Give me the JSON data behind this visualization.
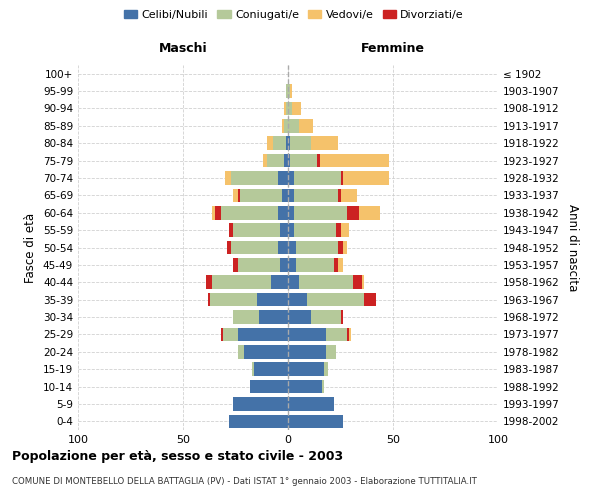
{
  "age_groups": [
    "0-4",
    "5-9",
    "10-14",
    "15-19",
    "20-24",
    "25-29",
    "30-34",
    "35-39",
    "40-44",
    "45-49",
    "50-54",
    "55-59",
    "60-64",
    "65-69",
    "70-74",
    "75-79",
    "80-84",
    "85-89",
    "90-94",
    "95-99",
    "100+"
  ],
  "birth_years": [
    "1998-2002",
    "1993-1997",
    "1988-1992",
    "1983-1987",
    "1978-1982",
    "1973-1977",
    "1968-1972",
    "1963-1967",
    "1958-1962",
    "1953-1957",
    "1948-1952",
    "1943-1947",
    "1938-1942",
    "1933-1937",
    "1928-1932",
    "1923-1927",
    "1918-1922",
    "1913-1917",
    "1908-1912",
    "1903-1907",
    "≤ 1902"
  ],
  "colors": {
    "celibi": "#4472a8",
    "coniugati": "#b5c99a",
    "vedovi": "#f5c26b",
    "divorziati": "#cc2222"
  },
  "maschi": {
    "celibi": [
      28,
      26,
      18,
      16,
      21,
      24,
      14,
      15,
      8,
      4,
      5,
      4,
      5,
      3,
      5,
      2,
      1,
      0,
      0,
      0,
      0
    ],
    "coniugati": [
      0,
      0,
      0,
      1,
      3,
      7,
      12,
      22,
      28,
      20,
      22,
      22,
      27,
      20,
      22,
      8,
      6,
      2,
      1,
      1,
      0
    ],
    "vedovi": [
      0,
      0,
      0,
      0,
      0,
      0,
      0,
      0,
      0,
      0,
      0,
      0,
      1,
      2,
      3,
      2,
      3,
      1,
      1,
      0,
      0
    ],
    "divorziati": [
      0,
      0,
      0,
      0,
      0,
      1,
      0,
      1,
      3,
      2,
      2,
      2,
      3,
      1,
      0,
      0,
      0,
      0,
      0,
      0,
      0
    ]
  },
  "femmine": {
    "celibi": [
      26,
      22,
      16,
      17,
      18,
      18,
      11,
      9,
      5,
      4,
      4,
      3,
      3,
      3,
      3,
      1,
      1,
      0,
      0,
      0,
      0
    ],
    "coniugati": [
      0,
      0,
      1,
      2,
      5,
      10,
      14,
      27,
      26,
      18,
      20,
      20,
      25,
      21,
      22,
      13,
      10,
      5,
      2,
      1,
      0
    ],
    "vedovi": [
      0,
      0,
      0,
      0,
      0,
      1,
      0,
      0,
      1,
      2,
      2,
      4,
      10,
      8,
      22,
      33,
      13,
      7,
      4,
      1,
      0
    ],
    "divorziati": [
      0,
      0,
      0,
      0,
      0,
      1,
      1,
      6,
      4,
      2,
      2,
      2,
      6,
      1,
      1,
      1,
      0,
      0,
      0,
      0,
      0
    ]
  },
  "xlim": 100,
  "title": "Popolazione per età, sesso e stato civile - 2003",
  "subtitle": "COMUNE DI MONTEBELLO DELLA BATTAGLIA (PV) - Dati ISTAT 1° gennaio 2003 - Elaborazione TUTTITALIA.IT",
  "xlabel_left": "Maschi",
  "xlabel_right": "Femmine",
  "ylabel_left": "Fasce di età",
  "ylabel_right": "Anni di nascita",
  "legend_labels": [
    "Celibi/Nubili",
    "Coniugati/e",
    "Vedovi/e",
    "Divorziati/e"
  ],
  "bg_color": "#ffffff",
  "grid_color": "#cccccc"
}
